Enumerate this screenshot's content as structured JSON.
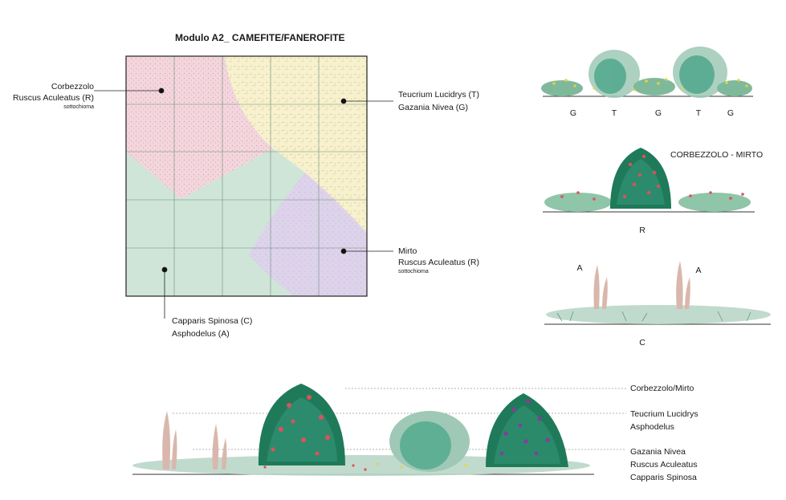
{
  "title": "Modulo A2_ CAMEFITE/FANEROFITE",
  "plan": {
    "zones": {
      "top_left": {
        "line1": "Corbezzolo",
        "line2": "Ruscus Aculeatus (R)",
        "line3": "sottochioma",
        "color": "#f3d6dd"
      },
      "top_right": {
        "line1": "Teucrium Lucidrys (T)",
        "line2": "Gazania Nivea (G)",
        "color": "#f7f1cf"
      },
      "bottom_right": {
        "line1": "Mirto",
        "line2": "Ruscus Aculeatus (R)",
        "line3": "sottochioma",
        "color": "#ddd3ea"
      },
      "bottom_left": {
        "line1": "Capparis Spinosa (C)",
        "line2": "Asphodelus (A)",
        "color": "#cfe5d8"
      }
    }
  },
  "sections": {
    "s1": {
      "letters": [
        "G",
        "T",
        "G",
        "T",
        "G"
      ]
    },
    "s2": {
      "title": "CORBEZZOLO - MIRTO",
      "letter": "R"
    },
    "s3": {
      "letters": [
        "A",
        "A",
        "C"
      ]
    }
  },
  "legend": {
    "row1": "Corbezzolo/Mirto",
    "row2a": "Teucrium Lucidrys",
    "row2b": "Asphodelus",
    "row3a": "Gazania Nivea",
    "row3b": "Ruscus Aculeatus",
    "row3c": "Capparis Spinosa"
  },
  "colors": {
    "foliage_dark": "#1f7a5a",
    "foliage_mid": "#4aa58a",
    "foliage_light": "#9fc9b6",
    "berry_red": "#e0505a",
    "flower_yellow": "#e8d23a",
    "flower_purple": "#8a3a9c",
    "asphodel_stem": "#d9b7ad"
  }
}
